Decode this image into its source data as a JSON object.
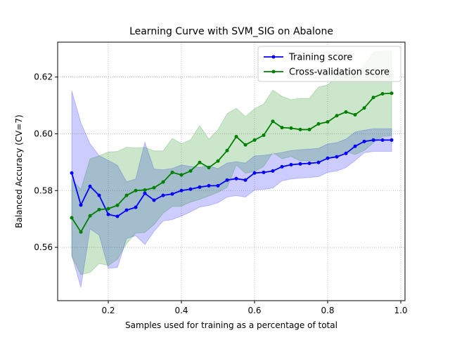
{
  "chart_data": {
    "type": "line",
    "title": "Learning Curve with SVM_SIG on Abalone",
    "x_label": "Samples used for training as a percentage of total",
    "y_label": "Balanced Accuracy (CV=7)",
    "x": [
      0.1,
      0.125,
      0.15,
      0.175,
      0.2,
      0.225,
      0.25,
      0.275,
      0.3,
      0.325,
      0.35,
      0.375,
      0.4,
      0.425,
      0.45,
      0.475,
      0.5,
      0.525,
      0.55,
      0.575,
      0.6,
      0.625,
      0.65,
      0.675,
      0.7,
      0.725,
      0.75,
      0.775,
      0.8,
      0.825,
      0.85,
      0.875,
      0.9,
      0.925,
      0.95,
      0.975
    ],
    "series": [
      {
        "name": "Training score",
        "color": "#0000ff",
        "values": [
          0.5862,
          0.5749,
          0.5815,
          0.5783,
          0.5716,
          0.5709,
          0.5731,
          0.5741,
          0.579,
          0.5766,
          0.5783,
          0.5788,
          0.58,
          0.5805,
          0.5812,
          0.5817,
          0.5817,
          0.5837,
          0.5842,
          0.5837,
          0.5862,
          0.5864,
          0.5869,
          0.5884,
          0.5891,
          0.5894,
          0.5896,
          0.5899,
          0.5914,
          0.5919,
          0.5931,
          0.5956,
          0.5973,
          0.5978,
          0.5978,
          0.5978
        ],
        "error": [
          0.029,
          0.029,
          0.015,
          0.014,
          0.019,
          0.018,
          0.01,
          0.01,
          0.018,
          0.011,
          0.009,
          0.009,
          0.009,
          0.008,
          0.007,
          0.007,
          0.006,
          0.006,
          0.006,
          0.006,
          0.006,
          0.006,
          0.006,
          0.005,
          0.005,
          0.005,
          0.005,
          0.005,
          0.005,
          0.005,
          0.005,
          0.005,
          0.004,
          0.004,
          0.004,
          0.004
        ]
      },
      {
        "name": "Cross-validation score",
        "color": "#008000",
        "values": [
          0.5704,
          0.5654,
          0.5711,
          0.5733,
          0.5736,
          0.5748,
          0.5783,
          0.58,
          0.5802,
          0.581,
          0.583,
          0.5864,
          0.5855,
          0.5869,
          0.5899,
          0.5881,
          0.5904,
          0.5941,
          0.599,
          0.5961,
          0.5978,
          0.5995,
          0.6044,
          0.6022,
          0.602,
          0.6015,
          0.6015,
          0.6035,
          0.6042,
          0.6064,
          0.6077,
          0.6067,
          0.6091,
          0.6128,
          0.6141,
          0.6143
        ],
        "error": [
          0.0135,
          0.015,
          0.02,
          0.019,
          0.02,
          0.019,
          0.017,
          0.015,
          0.015,
          0.013,
          0.011,
          0.012,
          0.011,
          0.011,
          0.013,
          0.01,
          0.011,
          0.013,
          0.01,
          0.01,
          0.011,
          0.011,
          0.011,
          0.011,
          0.01,
          0.011,
          0.011,
          0.013,
          0.013,
          0.014,
          0.014,
          0.014,
          0.015,
          0.016,
          0.015,
          0.015
        ]
      }
    ],
    "xlim": [
      0.0615,
      1.0115
    ],
    "ylim": [
      0.5412,
      0.6323
    ],
    "xticks": [
      0.2,
      0.4,
      0.6,
      0.8,
      {
        "value": 1,
        "label": "1.0"
      }
    ],
    "yticks": [
      0.56,
      0.58,
      {
        "value": 0.6,
        "label": "0.60"
      },
      0.62
    ],
    "grid": true,
    "legend": "upper right"
  }
}
